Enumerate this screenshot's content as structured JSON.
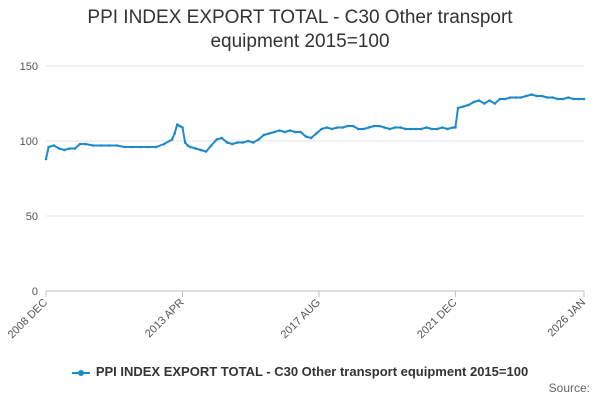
{
  "chart_data": {
    "type": "line",
    "title_line1": "PPI INDEX EXPORT TOTAL - C30 Other transport",
    "title_line2": "equipment 2015=100",
    "series": [
      {
        "name": "PPI INDEX EXPORT TOTAL - C30 Other transport equipment 2015=100",
        "color": "#1f8ac9",
        "x": [
          "2008-12",
          "2009-01",
          "2009-03",
          "2009-05",
          "2009-07",
          "2009-09",
          "2009-11",
          "2010-01",
          "2010-03",
          "2010-06",
          "2010-09",
          "2010-12",
          "2011-03",
          "2011-06",
          "2011-09",
          "2011-12",
          "2012-03",
          "2012-06",
          "2012-09",
          "2012-12",
          "2013-01",
          "2013-02",
          "2013-03",
          "2013-04",
          "2013-05",
          "2013-06",
          "2013-07",
          "2013-09",
          "2013-11",
          "2014-01",
          "2014-03",
          "2014-05",
          "2014-07",
          "2014-09",
          "2014-11",
          "2015-01",
          "2015-03",
          "2015-05",
          "2015-07",
          "2015-09",
          "2015-11",
          "2016-01",
          "2016-03",
          "2016-05",
          "2016-07",
          "2016-09",
          "2016-11",
          "2017-01",
          "2017-03",
          "2017-05",
          "2017-07",
          "2017-09",
          "2017-11",
          "2018-01",
          "2018-03",
          "2018-05",
          "2018-07",
          "2018-09",
          "2018-11",
          "2019-01",
          "2019-03",
          "2019-05",
          "2019-07",
          "2019-09",
          "2019-11",
          "2020-01",
          "2020-03",
          "2020-05",
          "2020-07",
          "2020-09",
          "2020-11",
          "2021-01",
          "2021-03",
          "2021-05",
          "2021-07",
          "2021-09",
          "2021-11",
          "2021-12",
          "2022-01",
          "2022-03",
          "2022-05",
          "2022-07",
          "2022-09",
          "2022-11",
          "2023-01",
          "2023-03",
          "2023-05",
          "2023-07",
          "2023-09",
          "2023-11",
          "2024-01",
          "2024-03",
          "2024-05",
          "2024-07",
          "2024-09",
          "2024-11",
          "2025-01",
          "2025-03",
          "2025-05",
          "2025-07",
          "2025-09",
          "2025-11",
          "2026-01"
        ],
        "values": [
          88,
          96,
          97,
          95,
          94,
          95,
          95,
          98,
          98,
          97,
          97,
          97,
          97,
          96,
          96,
          96,
          96,
          96,
          98,
          101,
          105,
          111,
          110,
          109,
          99,
          97,
          96,
          95,
          94,
          93,
          97,
          101,
          102,
          99,
          98,
          99,
          99,
          100,
          99,
          101,
          104,
          105,
          106,
          107,
          106,
          107,
          106,
          106,
          103,
          102,
          105,
          108,
          109,
          108,
          109,
          109,
          110,
          110,
          108,
          108,
          109,
          110,
          110,
          109,
          108,
          109,
          109,
          108,
          108,
          108,
          108,
          109,
          108,
          108,
          109,
          108,
          109,
          109,
          122,
          123,
          124,
          126,
          127,
          125,
          127,
          125,
          128,
          128,
          129,
          129,
          129,
          130,
          131,
          130,
          130,
          129,
          129,
          128,
          128,
          129,
          128,
          128,
          128
        ]
      }
    ],
    "x_tick_labels": [
      "2008 DEC",
      "2013 APR",
      "2017 AUG",
      "2021 DEC",
      "2026 JAN"
    ],
    "x_tick_dates": [
      "2008-12",
      "2013-04",
      "2017-08",
      "2021-12",
      "2026-01"
    ],
    "y_ticks": [
      0,
      50,
      100,
      150
    ],
    "ylim": [
      0,
      150
    ],
    "grid": "horizontal",
    "legend_position": "bottom",
    "source_label": "Source:"
  }
}
